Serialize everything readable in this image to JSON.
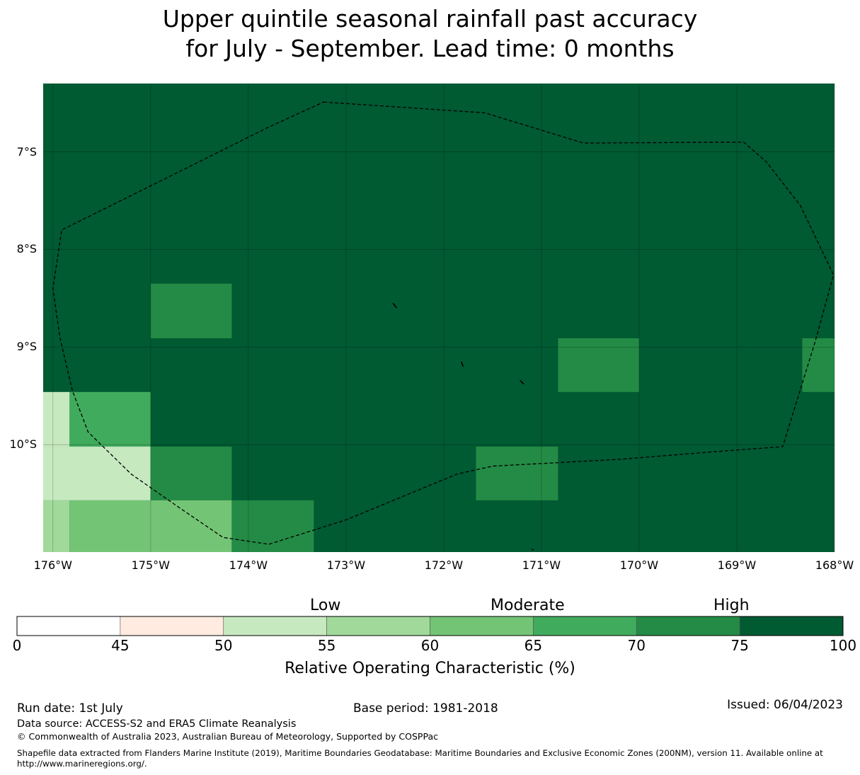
{
  "title": {
    "line1": "Upper quintile seasonal rainfall past accuracy",
    "line2": "for July - September. Lead time: 0 months"
  },
  "map": {
    "lon_range": [
      -176.1,
      -168.0
    ],
    "lat_range": [
      -11.1,
      -6.3
    ],
    "lat_ticks": [
      {
        "value": -7,
        "label": "7°S"
      },
      {
        "value": -8,
        "label": "8°S"
      },
      {
        "value": -9,
        "label": "9°S"
      },
      {
        "value": -10,
        "label": "10°S"
      }
    ],
    "lon_ticks": [
      {
        "value": -176,
        "label": "176°W"
      },
      {
        "value": -175,
        "label": "175°W"
      },
      {
        "value": -174,
        "label": "174°W"
      },
      {
        "value": -173,
        "label": "173°W"
      },
      {
        "value": -172,
        "label": "172°W"
      },
      {
        "value": -171,
        "label": "171°W"
      },
      {
        "value": -170,
        "label": "170°W"
      },
      {
        "value": -169,
        "label": "169°W"
      },
      {
        "value": -168,
        "label": "168°W"
      }
    ],
    "background_color": "#005a32",
    "cell_size_deg": 0.833,
    "cells": [
      {
        "lon0": -175.0,
        "lon1": -174.17,
        "lat0": -8.91,
        "lat1": -8.35,
        "color": "#238b45"
      },
      {
        "lon0": -170.83,
        "lon1": -170.0,
        "lat0": -9.46,
        "lat1": -8.91,
        "color": "#238b45"
      },
      {
        "lon0": -168.33,
        "lon1": -168.0,
        "lat0": -9.46,
        "lat1": -8.91,
        "color": "#238b45"
      },
      {
        "lon0": -176.1,
        "lon1": -175.83,
        "lat0": -10.02,
        "lat1": -9.46,
        "color": "#c7e9c0"
      },
      {
        "lon0": -175.83,
        "lon1": -175.0,
        "lat0": -10.02,
        "lat1": -9.46,
        "color": "#41ab5d"
      },
      {
        "lon0": -176.1,
        "lon1": -175.0,
        "lat0": -10.57,
        "lat1": -10.02,
        "color": "#c7e9c0"
      },
      {
        "lon0": -175.0,
        "lon1": -174.17,
        "lat0": -10.57,
        "lat1": -10.02,
        "color": "#238b45"
      },
      {
        "lon0": -171.67,
        "lon1": -170.83,
        "lat0": -10.57,
        "lat1": -10.02,
        "color": "#238b45"
      },
      {
        "lon0": -176.1,
        "lon1": -175.83,
        "lat0": -11.1,
        "lat1": -10.57,
        "color": "#a1d99b"
      },
      {
        "lon0": -175.83,
        "lon1": -174.17,
        "lat0": -11.1,
        "lat1": -10.57,
        "color": "#74c476"
      },
      {
        "lon0": -174.17,
        "lon1": -173.33,
        "lat0": -11.1,
        "lat1": -10.57,
        "color": "#238b45"
      }
    ],
    "eez_boundary": [
      [
        -173.23,
        -6.49
      ],
      [
        -171.58,
        -6.6
      ],
      [
        -170.57,
        -6.91
      ],
      [
        -168.93,
        -6.9
      ],
      [
        -168.7,
        -7.1
      ],
      [
        -168.35,
        -7.55
      ],
      [
        -168.01,
        -8.26
      ],
      [
        -168.2,
        -8.95
      ],
      [
        -168.53,
        -10.02
      ],
      [
        -169.2,
        -10.07
      ],
      [
        -170.2,
        -10.15
      ],
      [
        -171.5,
        -10.22
      ],
      [
        -171.86,
        -10.3
      ],
      [
        -173.0,
        -10.77
      ],
      [
        -173.79,
        -11.02
      ],
      [
        -174.26,
        -10.95
      ],
      [
        -174.7,
        -10.65
      ],
      [
        -175.2,
        -10.3
      ],
      [
        -175.64,
        -9.87
      ],
      [
        -175.8,
        -9.45
      ],
      [
        -175.93,
        -8.9
      ],
      [
        -176.0,
        -8.4
      ],
      [
        -175.91,
        -7.8
      ],
      [
        -174.7,
        -7.2
      ],
      [
        -173.8,
        -6.75
      ],
      [
        -173.23,
        -6.49
      ]
    ],
    "islands": [
      [
        [
          -172.52,
          -8.55
        ],
        [
          -172.48,
          -8.6
        ]
      ],
      [
        [
          -171.82,
          -9.15
        ],
        [
          -171.8,
          -9.2
        ]
      ],
      [
        [
          -171.22,
          -9.34
        ],
        [
          -171.18,
          -9.38
        ]
      ],
      [
        [
          -171.1,
          -11.07
        ],
        [
          -171.08,
          -11.08
        ]
      ]
    ]
  },
  "colorbar": {
    "levels": [
      0,
      45,
      50,
      55,
      60,
      65,
      70,
      75,
      100
    ],
    "tick_labels": [
      "0",
      "45",
      "50",
      "55",
      "60",
      "65",
      "70",
      "75",
      "100"
    ],
    "colors": [
      "#ffffff",
      "#ffebe0",
      "#c7e9c0",
      "#a1d99b",
      "#74c476",
      "#41ab5d",
      "#238b45",
      "#005a32"
    ],
    "category_labels": [
      "Low",
      "Moderate",
      "High"
    ],
    "title": "Relative Operating Characteristic (%)"
  },
  "footer": {
    "run_date": "Run date: 1st July",
    "base_period": "Base period: 1981-2018",
    "issued": "Issued: 06/04/2023",
    "data_source": "Data source: ACCESS-S2 and ERA5 Climate Reanalysis",
    "copyright": "© Commonwealth of Australia 2023, Australian Bureau of Meteorology, Supported by COSPPac",
    "shapefile_line1": "Shapefile data extracted from Flanders Marine Institute (2019), Maritime Boundaries Geodatabase: Maritime Boundaries and Exclusive Economic Zones (200NM), version 11. Available online at",
    "shapefile_line2": "http://www.marineregions.org/."
  }
}
